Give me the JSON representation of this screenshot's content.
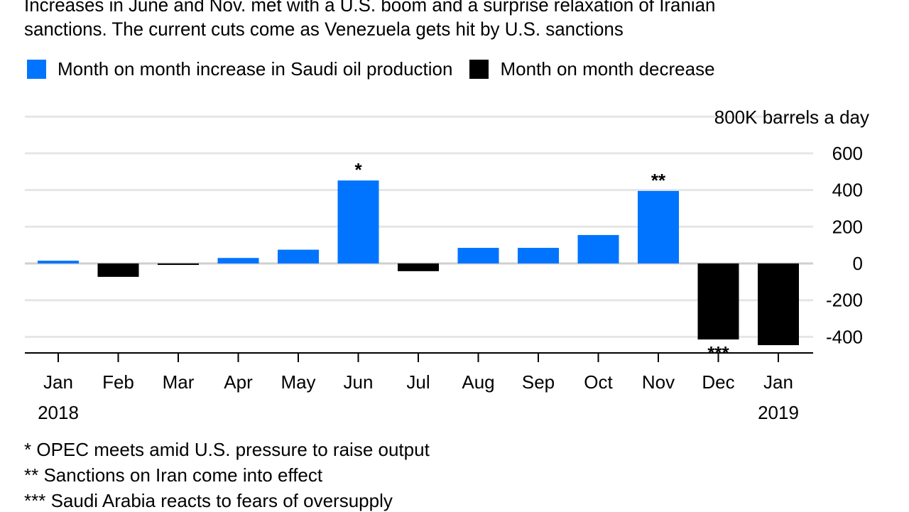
{
  "subtitle_lines": [
    "Increases in June and Nov. met with a U.S. boom and a surprise relaxation of Iranian",
    "sanctions. The current cuts come as Venezuela gets hit by U.S. sanctions"
  ],
  "colors": {
    "increase": "#0074ff",
    "decrease": "#000000",
    "grid": "#e6e6e6"
  },
  "chart_data": {
    "type": "bar",
    "legend": [
      {
        "name": "Month on month increase in Saudi oil production",
        "color": "#0074ff"
      },
      {
        "name": "Month on month decrease",
        "color": "#000000"
      }
    ],
    "legend_placement": "top-left",
    "ylabel": "800K barrels a day",
    "yticks": [
      600,
      400,
      200,
      0,
      -200,
      -400
    ],
    "ytick_labels": [
      "600",
      "400",
      "200",
      "0",
      "-200",
      "-400"
    ],
    "ylim": [
      -500,
      800
    ],
    "grid": true,
    "categories": [
      "Jan",
      "Feb",
      "Mar",
      "Apr",
      "May",
      "Jun",
      "Jul",
      "Aug",
      "Sep",
      "Oct",
      "Nov",
      "Dec",
      "Jan"
    ],
    "year_labels": [
      {
        "index": 0,
        "label": "2018"
      },
      {
        "index": 12,
        "label": "2019"
      }
    ],
    "values": [
      15,
      -73,
      -8,
      30,
      75,
      452,
      -42,
      85,
      85,
      155,
      395,
      -414,
      -445
    ],
    "annotations": [
      {
        "index": 5,
        "label": "*",
        "position": "above"
      },
      {
        "index": 10,
        "label": "**",
        "position": "above"
      },
      {
        "index": 11,
        "label": "***",
        "position": "below"
      }
    ]
  },
  "footnotes": [
    "* OPEC meets amid U.S. pressure to raise output",
    "** Sanctions on Iran come into effect",
    "*** Saudi Arabia reacts to fears of oversupply"
  ]
}
